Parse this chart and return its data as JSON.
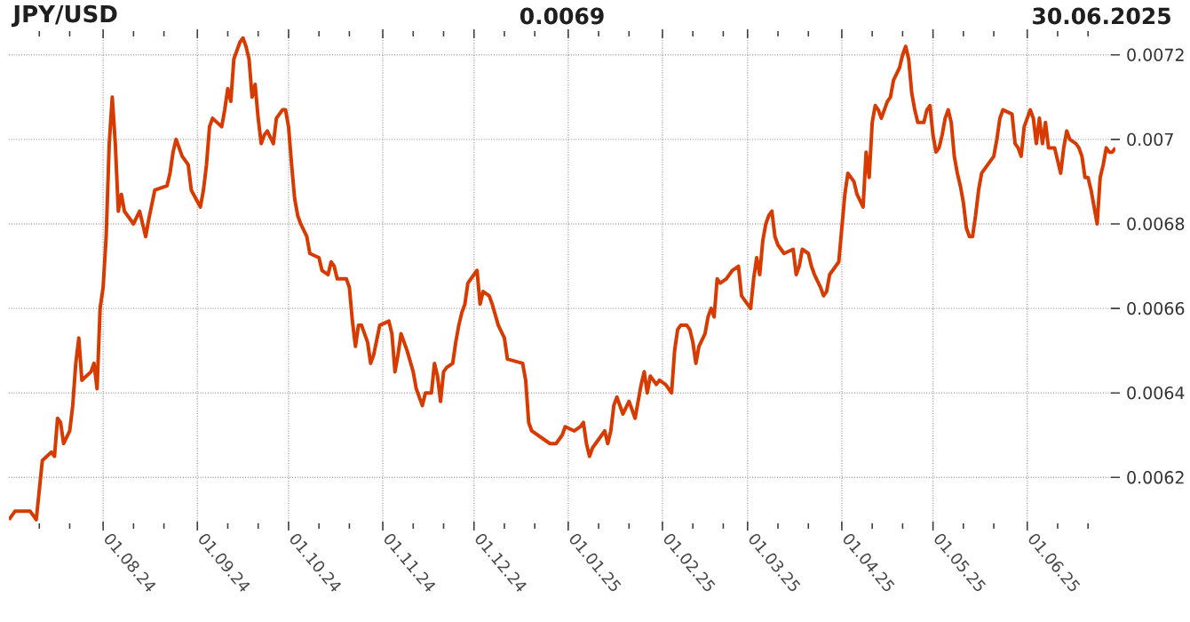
{
  "chart_data": {
    "type": "line",
    "title": "JPY/USD",
    "annotations": [
      "0.0069",
      "30.06.2025"
    ],
    "color": "#d83b01",
    "grid": true,
    "xlim": [
      "2024-07-01",
      "2025-06-30"
    ],
    "ylim": [
      0.006085,
      0.00725
    ],
    "yticks": [
      0.0062,
      0.0064,
      0.0066,
      0.0068,
      0.007,
      0.0072
    ],
    "xticks": [
      {
        "value": "2024-07-11",
        "label": null
      },
      {
        "value": "2024-07-21",
        "label": null
      },
      {
        "value": "2024-08-01",
        "label": "01.08.24"
      },
      {
        "value": "2024-08-11",
        "label": null
      },
      {
        "value": "2024-08-21",
        "label": null
      },
      {
        "value": "2024-09-01",
        "label": "01.09.24"
      },
      {
        "value": "2024-09-11",
        "label": null
      },
      {
        "value": "2024-09-21",
        "label": null
      },
      {
        "value": "2024-10-01",
        "label": "01.10.24"
      },
      {
        "value": "2024-10-11",
        "label": null
      },
      {
        "value": "2024-10-21",
        "label": null
      },
      {
        "value": "2024-11-01",
        "label": "01.11.24"
      },
      {
        "value": "2024-11-11",
        "label": null
      },
      {
        "value": "2024-11-21",
        "label": null
      },
      {
        "value": "2024-12-01",
        "label": "01.12.24"
      },
      {
        "value": "2024-12-11",
        "label": null
      },
      {
        "value": "2024-12-21",
        "label": null
      },
      {
        "value": "2025-01-01",
        "label": "01.01.25"
      },
      {
        "value": "2025-01-11",
        "label": null
      },
      {
        "value": "2025-01-21",
        "label": null
      },
      {
        "value": "2025-02-01",
        "label": "01.02.25"
      },
      {
        "value": "2025-02-11",
        "label": null
      },
      {
        "value": "2025-02-21",
        "label": null
      },
      {
        "value": "2025-03-01",
        "label": "01.03.25"
      },
      {
        "value": "2025-03-11",
        "label": null
      },
      {
        "value": "2025-03-21",
        "label": null
      },
      {
        "value": "2025-04-01",
        "label": "01.04.25"
      },
      {
        "value": "2025-04-11",
        "label": null
      },
      {
        "value": "2025-04-21",
        "label": null
      },
      {
        "value": "2025-05-01",
        "label": "01.05.25"
      },
      {
        "value": "2025-05-11",
        "label": null
      },
      {
        "value": "2025-05-21",
        "label": null
      },
      {
        "value": "2025-06-01",
        "label": "01.06.25"
      },
      {
        "value": "2025-06-11",
        "label": null
      },
      {
        "value": "2025-06-21",
        "label": null
      }
    ],
    "x": [
      "2024-07-01",
      "2024-07-03",
      "2024-07-08",
      "2024-07-10",
      "2024-07-11",
      "2024-07-12",
      "2024-07-15",
      "2024-07-16",
      "2024-07-17",
      "2024-07-18",
      "2024-07-19",
      "2024-07-21",
      "2024-07-22",
      "2024-07-23",
      "2024-07-24",
      "2024-07-25",
      "2024-07-28",
      "2024-07-29",
      "2024-07-30",
      "2024-07-31",
      "2024-08-01",
      "2024-08-02",
      "2024-08-03",
      "2024-08-04",
      "2024-08-05",
      "2024-08-06",
      "2024-08-07",
      "2024-08-08",
      "2024-08-11",
      "2024-08-13",
      "2024-08-15",
      "2024-08-16",
      "2024-08-18",
      "2024-08-22",
      "2024-08-23",
      "2024-08-24",
      "2024-08-25",
      "2024-08-27",
      "2024-08-29",
      "2024-08-30",
      "2024-09-02",
      "2024-09-03",
      "2024-09-04",
      "2024-09-05",
      "2024-09-06",
      "2024-09-09",
      "2024-09-10",
      "2024-09-11",
      "2024-09-12",
      "2024-09-13",
      "2024-09-15",
      "2024-09-16",
      "2024-09-17",
      "2024-09-18",
      "2024-09-19",
      "2024-09-20",
      "2024-09-21",
      "2024-09-22",
      "2024-09-23",
      "2024-09-24",
      "2024-09-26",
      "2024-09-27",
      "2024-09-29",
      "2024-09-30",
      "2024-10-01",
      "2024-10-02",
      "2024-10-03",
      "2024-10-04",
      "2024-10-05",
      "2024-10-07",
      "2024-10-08",
      "2024-10-11",
      "2024-10-12",
      "2024-10-14",
      "2024-10-15",
      "2024-10-16",
      "2024-10-17",
      "2024-10-20",
      "2024-10-21",
      "2024-10-22",
      "2024-10-23",
      "2024-10-24",
      "2024-10-25",
      "2024-10-27",
      "2024-10-28",
      "2024-10-29",
      "2024-10-31",
      "2024-11-03",
      "2024-11-04",
      "2024-11-05",
      "2024-11-06",
      "2024-11-07",
      "2024-11-09",
      "2024-11-11",
      "2024-11-12",
      "2024-11-14",
      "2024-11-15",
      "2024-11-17",
      "2024-11-18",
      "2024-11-19",
      "2024-11-20",
      "2024-11-21",
      "2024-11-22",
      "2024-11-24",
      "2024-11-25",
      "2024-11-26",
      "2024-11-27",
      "2024-11-28",
      "2024-11-29",
      "2024-11-30",
      "2024-12-02",
      "2024-12-03",
      "2024-12-04",
      "2024-12-06",
      "2024-12-07",
      "2024-12-09",
      "2024-12-11",
      "2024-12-12",
      "2024-12-17",
      "2024-12-18",
      "2024-12-19",
      "2024-12-20",
      "2024-12-24",
      "2024-12-26",
      "2024-12-28",
      "2024-12-30",
      "2024-12-31",
      "2025-01-03",
      "2025-01-05",
      "2025-01-06",
      "2025-01-07",
      "2025-01-08",
      "2025-01-09",
      "2025-01-12",
      "2025-01-13",
      "2025-01-14",
      "2025-01-15",
      "2025-01-16",
      "2025-01-17",
      "2025-01-19",
      "2025-01-21",
      "2025-01-23",
      "2025-01-24",
      "2025-01-25",
      "2025-01-26",
      "2025-01-27",
      "2025-01-28",
      "2025-01-30",
      "2025-01-31",
      "2025-02-02",
      "2025-02-04",
      "2025-02-05",
      "2025-02-06",
      "2025-02-07",
      "2025-02-09",
      "2025-02-10",
      "2025-02-11",
      "2025-02-12",
      "2025-02-13",
      "2025-02-15",
      "2025-02-16",
      "2025-02-17",
      "2025-02-18",
      "2025-02-19",
      "2025-02-20",
      "2025-02-22",
      "2025-02-24",
      "2025-02-26",
      "2025-02-27",
      "2025-02-28",
      "2025-03-02",
      "2025-03-03",
      "2025-03-04",
      "2025-03-05",
      "2025-03-06",
      "2025-03-07",
      "2025-03-08",
      "2025-03-09",
      "2025-03-10",
      "2025-03-11",
      "2025-03-13",
      "2025-03-16",
      "2025-03-17",
      "2025-03-18",
      "2025-03-19",
      "2025-03-21",
      "2025-03-22",
      "2025-03-23",
      "2025-03-25",
      "2025-03-26",
      "2025-03-27",
      "2025-03-28",
      "2025-03-30",
      "2025-03-31",
      "2025-04-01",
      "2025-04-02",
      "2025-04-03",
      "2025-04-05",
      "2025-04-06",
      "2025-04-08",
      "2025-04-09",
      "2025-04-10",
      "2025-04-11",
      "2025-04-12",
      "2025-04-13",
      "2025-04-14",
      "2025-04-15",
      "2025-04-16",
      "2025-04-17",
      "2025-04-18",
      "2025-04-20",
      "2025-04-21",
      "2025-04-22",
      "2025-04-23",
      "2025-04-24",
      "2025-04-25",
      "2025-04-26",
      "2025-04-28",
      "2025-04-29",
      "2025-04-30",
      "2025-05-01",
      "2025-05-02",
      "2025-05-03",
      "2025-05-04",
      "2025-05-05",
      "2025-05-06",
      "2025-05-07",
      "2025-05-08",
      "2025-05-09",
      "2025-05-10",
      "2025-05-11",
      "2025-05-12",
      "2025-05-13",
      "2025-05-14",
      "2025-05-15",
      "2025-05-16",
      "2025-05-17",
      "2025-05-19",
      "2025-05-21",
      "2025-05-22",
      "2025-05-23",
      "2025-05-24",
      "2025-05-27",
      "2025-05-28",
      "2025-05-29",
      "2025-05-30",
      "2025-05-31",
      "2025-06-01",
      "2025-06-02",
      "2025-06-03",
      "2025-06-04",
      "2025-06-05",
      "2025-06-06",
      "2025-06-07",
      "2025-06-08",
      "2025-06-10",
      "2025-06-11",
      "2025-06-12",
      "2025-06-13",
      "2025-06-14",
      "2025-06-15",
      "2025-06-17",
      "2025-06-18",
      "2025-06-19",
      "2025-06-20",
      "2025-06-21",
      "2025-06-22",
      "2025-06-23",
      "2025-06-24",
      "2025-06-25",
      "2025-06-26",
      "2025-06-27",
      "2025-06-28",
      "2025-06-29",
      "2025-06-30"
    ],
    "values": [
      0.0061,
      0.00612,
      0.00612,
      0.0061,
      0.00617,
      0.00624,
      0.00626,
      0.00625,
      0.00634,
      0.00633,
      0.00628,
      0.00631,
      0.00637,
      0.00647,
      0.00653,
      0.00643,
      0.00645,
      0.00647,
      0.00641,
      0.0066,
      0.00665,
      0.00677,
      0.00699,
      0.0071,
      0.00699,
      0.00683,
      0.00687,
      0.00683,
      0.0068,
      0.00683,
      0.00677,
      0.00681,
      0.00688,
      0.00689,
      0.00692,
      0.00697,
      0.007,
      0.00696,
      0.00694,
      0.00688,
      0.00684,
      0.00688,
      0.00694,
      0.00703,
      0.00705,
      0.00703,
      0.00707,
      0.00712,
      0.00709,
      0.00719,
      0.00723,
      0.00724,
      0.00722,
      0.00719,
      0.0071,
      0.00713,
      0.00705,
      0.00699,
      0.00701,
      0.00702,
      0.00699,
      0.00705,
      0.00707,
      0.00707,
      0.00703,
      0.00694,
      0.00686,
      0.00682,
      0.0068,
      0.00677,
      0.00673,
      0.00672,
      0.00669,
      0.00668,
      0.00671,
      0.0067,
      0.00667,
      0.00667,
      0.00665,
      0.00657,
      0.00651,
      0.00656,
      0.00656,
      0.00652,
      0.00647,
      0.00649,
      0.00656,
      0.00657,
      0.00654,
      0.00645,
      0.00649,
      0.00654,
      0.0065,
      0.00645,
      0.00641,
      0.00637,
      0.0064,
      0.0064,
      0.00647,
      0.00644,
      0.00638,
      0.00645,
      0.00646,
      0.00647,
      0.00652,
      0.00656,
      0.00659,
      0.00661,
      0.00666,
      0.00667,
      0.00669,
      0.00661,
      0.00664,
      0.00663,
      0.00661,
      0.00656,
      0.00653,
      0.00648,
      0.00647,
      0.00643,
      0.00633,
      0.00631,
      0.00629,
      0.00628,
      0.00628,
      0.0063,
      0.00632,
      0.00631,
      0.00632,
      0.00633,
      0.00628,
      0.00625,
      0.00627,
      0.0063,
      0.00631,
      0.00628,
      0.00631,
      0.00637,
      0.00639,
      0.00635,
      0.00638,
      0.00634,
      0.00638,
      0.00642,
      0.00645,
      0.0064,
      0.00644,
      0.00642,
      0.00643,
      0.00642,
      0.0064,
      0.0065,
      0.00655,
      0.00656,
      0.00656,
      0.00655,
      0.00652,
      0.00647,
      0.00651,
      0.00654,
      0.00658,
      0.0066,
      0.00658,
      0.00667,
      0.00666,
      0.00667,
      0.00669,
      0.0067,
      0.00663,
      0.00662,
      0.0066,
      0.00667,
      0.00672,
      0.00668,
      0.00676,
      0.0068,
      0.00682,
      0.00683,
      0.00677,
      0.00675,
      0.00673,
      0.00674,
      0.00668,
      0.0067,
      0.00674,
      0.00673,
      0.0067,
      0.00668,
      0.00665,
      0.00663,
      0.00664,
      0.00668,
      0.0067,
      0.00671,
      0.00679,
      0.00687,
      0.00692,
      0.0069,
      0.00687,
      0.00684,
      0.00697,
      0.00691,
      0.00704,
      0.00708,
      0.00707,
      0.00705,
      0.00707,
      0.00709,
      0.0071,
      0.00714,
      0.00717,
      0.0072,
      0.00722,
      0.00719,
      0.00711,
      0.00707,
      0.00704,
      0.00704,
      0.00707,
      0.00708,
      0.00701,
      0.00697,
      0.00698,
      0.00701,
      0.00705,
      0.00707,
      0.00704,
      0.00696,
      0.00692,
      0.00689,
      0.00685,
      0.00679,
      0.00677,
      0.00677,
      0.00682,
      0.00688,
      0.00692,
      0.00694,
      0.00696,
      0.007,
      0.00705,
      0.00707,
      0.00706,
      0.00699,
      0.00698,
      0.00696,
      0.00703,
      0.00705,
      0.00707,
      0.00705,
      0.00699,
      0.00705,
      0.00699,
      0.00704,
      0.00698,
      0.00698,
      0.00695,
      0.00692,
      0.00698,
      0.00702,
      0.007,
      0.00699,
      0.00698,
      0.00696,
      0.00691,
      0.00691,
      0.00688,
      0.00684,
      0.0068,
      0.00691,
      0.00694,
      0.00698,
      0.00697,
      0.00697,
      0.00698
    ]
  }
}
